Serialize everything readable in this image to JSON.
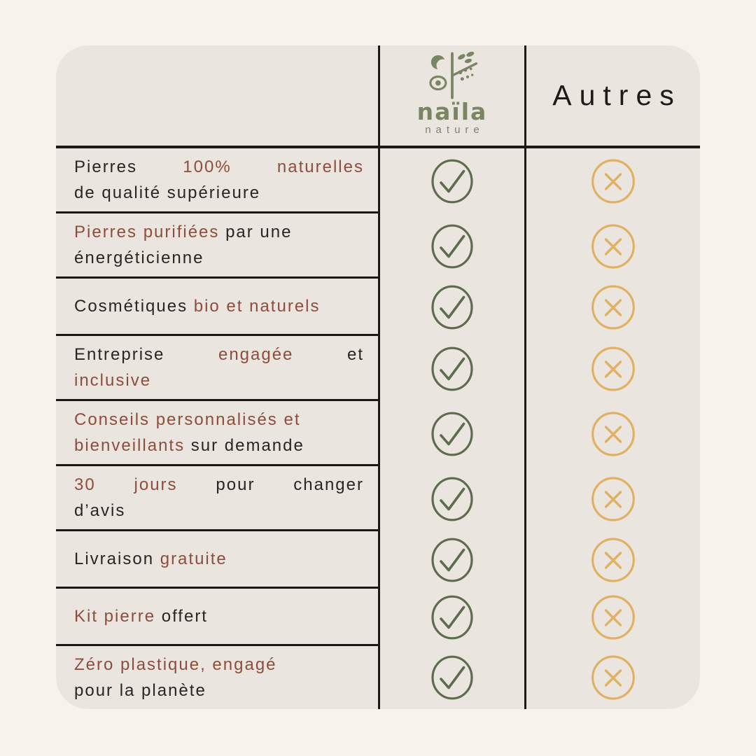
{
  "colors": {
    "page_background": "#f7f3ec",
    "card_background": "#eae6df",
    "grid_line": "#1b1815",
    "text_dark": "#2a2522",
    "text_accent_red": "#8e4d3c",
    "check_green": "#5d6c4e",
    "cross_gold": "#e0b164",
    "logo_green": "#7a8563"
  },
  "header": {
    "brand_logo_icon": "naila-nature-logo-icon",
    "brand_name": "naïla",
    "brand_tagline": "nature",
    "competitor_label": "Autres"
  },
  "icons": {
    "brand_value_icon": "check-circle-icon",
    "competitor_value_icon": "cross-circle-icon"
  },
  "table": {
    "rows": [
      {
        "naila": "check",
        "autres": "cross",
        "lines": [
          {
            "justify": true,
            "segments": [
              {
                "text": "Pierres ",
                "accent": false
              },
              {
                "text": "100% naturelles",
                "accent": true
              }
            ]
          },
          {
            "justify": false,
            "segments": [
              {
                "text": "de qualité supérieure",
                "accent": false
              }
            ]
          }
        ]
      },
      {
        "naila": "check",
        "autres": "cross",
        "lines": [
          {
            "justify": false,
            "segments": [
              {
                "text": "Pierres purifiées",
                "accent": true
              },
              {
                "text": " par une",
                "accent": false
              }
            ]
          },
          {
            "justify": false,
            "segments": [
              {
                "text": "énergéticienne",
                "accent": false
              }
            ]
          }
        ]
      },
      {
        "naila": "check",
        "autres": "cross",
        "lines": [
          {
            "justify": false,
            "segments": [
              {
                "text": "Cosmétiques ",
                "accent": false
              },
              {
                "text": "bio et naturels",
                "accent": true
              }
            ]
          }
        ]
      },
      {
        "naila": "check",
        "autres": "cross",
        "lines": [
          {
            "justify": true,
            "segments": [
              {
                "text": "Entreprise ",
                "accent": false
              },
              {
                "text": "engagée",
                "accent": true
              },
              {
                "text": " et",
                "accent": false
              }
            ]
          },
          {
            "justify": false,
            "segments": [
              {
                "text": "inclusive",
                "accent": true
              }
            ]
          }
        ]
      },
      {
        "naila": "check",
        "autres": "cross",
        "lines": [
          {
            "justify": false,
            "segments": [
              {
                "text": "Conseils personnalisés et",
                "accent": true
              }
            ]
          },
          {
            "justify": false,
            "segments": [
              {
                "text": "bienveillants",
                "accent": true
              },
              {
                "text": " sur demande",
                "accent": false
              }
            ]
          }
        ]
      },
      {
        "naila": "check",
        "autres": "cross",
        "lines": [
          {
            "justify": true,
            "segments": [
              {
                "text": "30 jours",
                "accent": true
              },
              {
                "text": " pour changer",
                "accent": false
              }
            ]
          },
          {
            "justify": false,
            "segments": [
              {
                "text": "d’avis",
                "accent": false
              }
            ]
          }
        ]
      },
      {
        "naila": "check",
        "autres": "cross",
        "lines": [
          {
            "justify": false,
            "segments": [
              {
                "text": "Livraison ",
                "accent": false
              },
              {
                "text": "gratuite",
                "accent": true
              }
            ]
          }
        ]
      },
      {
        "naila": "check",
        "autres": "cross",
        "lines": [
          {
            "justify": false,
            "segments": [
              {
                "text": "Kit pierre",
                "accent": true
              },
              {
                "text": " offert",
                "accent": false
              }
            ]
          }
        ]
      },
      {
        "naila": "check",
        "autres": "cross",
        "lines": [
          {
            "justify": false,
            "segments": [
              {
                "text": "Zéro plastique, engagé",
                "accent": true
              }
            ]
          },
          {
            "justify": false,
            "segments": [
              {
                "text": "pour la planète",
                "accent": false
              }
            ]
          }
        ]
      }
    ]
  }
}
